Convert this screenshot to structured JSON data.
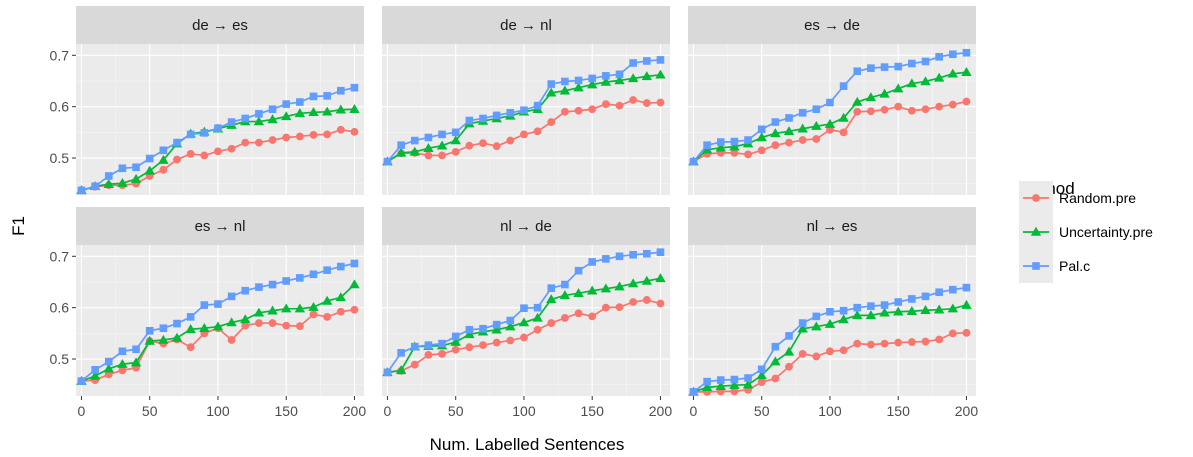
{
  "chart_data": {
    "type": "line",
    "xlabel": "Num. Labelled Sentences",
    "ylabel": "F1",
    "xlim": [
      -4,
      207
    ],
    "ylim": [
      0.428,
      0.722
    ],
    "x_ticks": [
      0,
      50,
      100,
      150,
      200
    ],
    "y_ticks": [
      0.5,
      0.6,
      0.7
    ],
    "y_tick_labels": [
      "0.5",
      "0.6",
      "0.7"
    ],
    "grid": true,
    "legend": {
      "title": "Method",
      "placement": "right",
      "entries": [
        {
          "name": "Random.pre",
          "color": "#F8766D",
          "marker": "circle"
        },
        {
          "name": "Uncertainty.pre",
          "color": "#00BA38",
          "marker": "triangle"
        },
        {
          "name": "Pal.c",
          "color": "#619CFF",
          "marker": "square"
        }
      ]
    },
    "x": [
      0,
      10,
      20,
      30,
      40,
      50,
      60,
      70,
      80,
      90,
      100,
      110,
      120,
      130,
      140,
      150,
      160,
      170,
      180,
      190,
      200
    ],
    "panels": [
      {
        "title": "de → es",
        "series": [
          {
            "name": "Random.pre",
            "values": [
              0.437,
              0.444,
              0.447,
              0.447,
              0.45,
              0.465,
              0.477,
              0.497,
              0.508,
              0.505,
              0.513,
              0.518,
              0.53,
              0.53,
              0.535,
              0.54,
              0.542,
              0.545,
              0.546,
              0.555,
              0.551
            ]
          },
          {
            "name": "Uncertainty.pre",
            "values": [
              0.437,
              0.445,
              0.449,
              0.451,
              0.459,
              0.475,
              0.496,
              0.528,
              0.547,
              0.551,
              0.557,
              0.564,
              0.571,
              0.571,
              0.575,
              0.581,
              0.587,
              0.589,
              0.59,
              0.594,
              0.595
            ]
          },
          {
            "name": "Pal.c",
            "values": [
              0.437,
              0.445,
              0.465,
              0.48,
              0.482,
              0.499,
              0.515,
              0.53,
              0.546,
              0.549,
              0.558,
              0.57,
              0.577,
              0.586,
              0.595,
              0.605,
              0.609,
              0.62,
              0.621,
              0.631,
              0.637
            ]
          }
        ]
      },
      {
        "title": "de → nl",
        "series": [
          {
            "name": "Random.pre",
            "values": [
              0.493,
              0.509,
              0.51,
              0.505,
              0.505,
              0.512,
              0.524,
              0.529,
              0.523,
              0.534,
              0.546,
              0.552,
              0.57,
              0.59,
              0.592,
              0.595,
              0.605,
              0.602,
              0.613,
              0.607,
              0.608
            ]
          },
          {
            "name": "Uncertainty.pre",
            "values": [
              0.493,
              0.51,
              0.512,
              0.519,
              0.524,
              0.534,
              0.567,
              0.572,
              0.577,
              0.582,
              0.59,
              0.595,
              0.627,
              0.631,
              0.637,
              0.643,
              0.648,
              0.651,
              0.655,
              0.659,
              0.662
            ]
          },
          {
            "name": "Pal.c",
            "values": [
              0.493,
              0.525,
              0.534,
              0.54,
              0.546,
              0.55,
              0.573,
              0.577,
              0.583,
              0.588,
              0.593,
              0.602,
              0.644,
              0.649,
              0.651,
              0.655,
              0.66,
              0.663,
              0.685,
              0.689,
              0.691
            ]
          }
        ]
      },
      {
        "title": "es → de",
        "series": [
          {
            "name": "Random.pre",
            "values": [
              0.493,
              0.508,
              0.51,
              0.51,
              0.507,
              0.515,
              0.525,
              0.53,
              0.535,
              0.537,
              0.555,
              0.55,
              0.59,
              0.591,
              0.594,
              0.6,
              0.592,
              0.595,
              0.6,
              0.604,
              0.61
            ]
          },
          {
            "name": "Uncertainty.pre",
            "values": [
              0.493,
              0.516,
              0.52,
              0.522,
              0.528,
              0.54,
              0.548,
              0.552,
              0.557,
              0.562,
              0.566,
              0.578,
              0.609,
              0.618,
              0.625,
              0.635,
              0.645,
              0.649,
              0.656,
              0.664,
              0.667
            ]
          },
          {
            "name": "Pal.c",
            "values": [
              0.493,
              0.525,
              0.531,
              0.532,
              0.535,
              0.556,
              0.57,
              0.578,
              0.588,
              0.595,
              0.608,
              0.64,
              0.669,
              0.675,
              0.677,
              0.678,
              0.684,
              0.688,
              0.697,
              0.702,
              0.705
            ]
          }
        ]
      },
      {
        "title": "es → nl",
        "series": [
          {
            "name": "Random.pre",
            "values": [
              0.457,
              0.459,
              0.47,
              0.478,
              0.483,
              0.535,
              0.53,
              0.538,
              0.523,
              0.55,
              0.56,
              0.537,
              0.565,
              0.57,
              0.57,
              0.565,
              0.564,
              0.587,
              0.582,
              0.592,
              0.596
            ]
          },
          {
            "name": "Uncertainty.pre",
            "values": [
              0.457,
              0.467,
              0.481,
              0.49,
              0.493,
              0.535,
              0.537,
              0.541,
              0.558,
              0.56,
              0.563,
              0.571,
              0.577,
              0.59,
              0.594,
              0.598,
              0.598,
              0.601,
              0.613,
              0.62,
              0.645
            ]
          },
          {
            "name": "Pal.c",
            "values": [
              0.457,
              0.479,
              0.495,
              0.515,
              0.519,
              0.555,
              0.56,
              0.569,
              0.582,
              0.605,
              0.607,
              0.622,
              0.633,
              0.64,
              0.645,
              0.652,
              0.658,
              0.665,
              0.673,
              0.68,
              0.686
            ]
          }
        ]
      },
      {
        "title": "nl → de",
        "series": [
          {
            "name": "Random.pre",
            "values": [
              0.474,
              0.477,
              0.489,
              0.508,
              0.51,
              0.518,
              0.523,
              0.527,
              0.532,
              0.536,
              0.542,
              0.557,
              0.57,
              0.58,
              0.589,
              0.583,
              0.6,
              0.601,
              0.611,
              0.615,
              0.608
            ]
          },
          {
            "name": "Uncertainty.pre",
            "values": [
              0.474,
              0.478,
              0.524,
              0.525,
              0.526,
              0.533,
              0.548,
              0.553,
              0.557,
              0.563,
              0.571,
              0.58,
              0.616,
              0.624,
              0.628,
              0.633,
              0.637,
              0.641,
              0.647,
              0.652,
              0.657
            ]
          },
          {
            "name": "Pal.c",
            "values": [
              0.474,
              0.512,
              0.524,
              0.527,
              0.53,
              0.544,
              0.557,
              0.559,
              0.567,
              0.575,
              0.599,
              0.6,
              0.638,
              0.645,
              0.672,
              0.689,
              0.695,
              0.7,
              0.703,
              0.705,
              0.708
            ]
          }
        ]
      },
      {
        "title": "nl → es",
        "series": [
          {
            "name": "Random.pre",
            "values": [
              0.436,
              0.436,
              0.437,
              0.437,
              0.44,
              0.455,
              0.462,
              0.485,
              0.51,
              0.505,
              0.515,
              0.517,
              0.53,
              0.528,
              0.53,
              0.532,
              0.533,
              0.534,
              0.538,
              0.55,
              0.551
            ]
          },
          {
            "name": "Uncertainty.pre",
            "values": [
              0.436,
              0.445,
              0.447,
              0.449,
              0.45,
              0.468,
              0.495,
              0.514,
              0.559,
              0.563,
              0.568,
              0.577,
              0.585,
              0.585,
              0.59,
              0.592,
              0.593,
              0.595,
              0.596,
              0.598,
              0.605
            ]
          },
          {
            "name": "Pal.c",
            "values": [
              0.436,
              0.456,
              0.459,
              0.46,
              0.463,
              0.48,
              0.524,
              0.545,
              0.57,
              0.583,
              0.592,
              0.594,
              0.6,
              0.603,
              0.605,
              0.611,
              0.617,
              0.622,
              0.63,
              0.635,
              0.639
            ]
          }
        ]
      }
    ]
  }
}
